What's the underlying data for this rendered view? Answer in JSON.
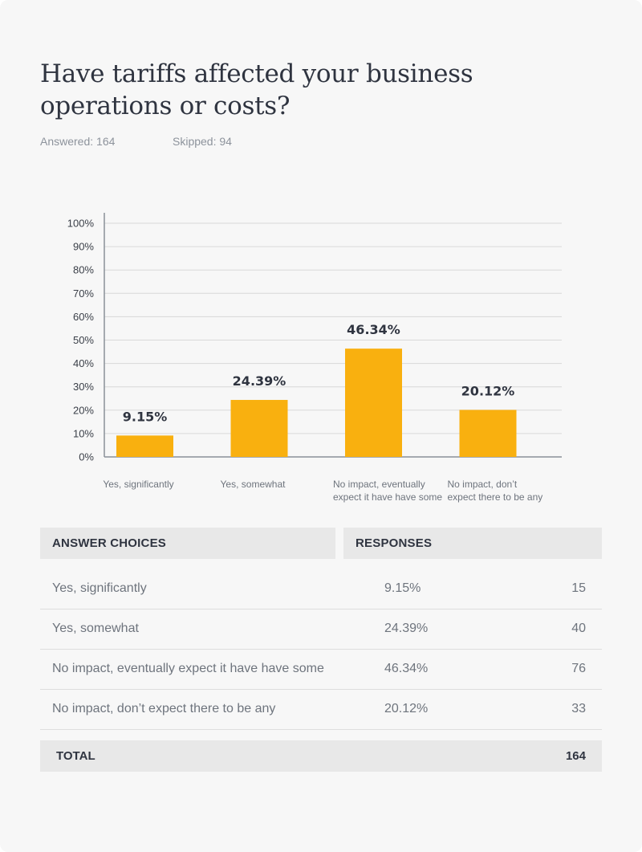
{
  "question": {
    "title": "Have tariffs affected your business operations or costs?",
    "answered": "Answered: 164",
    "skipped": "Skipped: 94"
  },
  "colors": {
    "bar": "#f9b00f",
    "grid": "#d8d8d8",
    "axis": "#8a9099"
  },
  "chart_data": {
    "type": "bar",
    "categories": [
      [
        "Yes, significantly"
      ],
      [
        "Yes, somewhat"
      ],
      [
        "No impact, eventually",
        "expect it have have some"
      ],
      [
        "No impact, don’t",
        "expect there to be any"
      ]
    ],
    "values": [
      9.15,
      24.39,
      46.34,
      20.12
    ],
    "data_labels": [
      "9.15%",
      "24.39%",
      "46.34%",
      "20.12%"
    ],
    "yticks": [
      "0%",
      "10%",
      "20%",
      "30%",
      "40%",
      "50%",
      "60%",
      "70%",
      "80%",
      "90%",
      "100%"
    ],
    "ylim": [
      0,
      100
    ],
    "grid": true
  },
  "table": {
    "header_choices": "ANSWER CHOICES",
    "header_responses": "RESPONSES",
    "rows": [
      {
        "label": "Yes, significantly",
        "percent": "9.15%",
        "count": "15"
      },
      {
        "label": "Yes, somewhat",
        "percent": "24.39%",
        "count": "40"
      },
      {
        "label": "No impact, eventually expect it have have some",
        "percent": "46.34%",
        "count": "76"
      },
      {
        "label": "No impact, don’t expect there to be any",
        "percent": "20.12%",
        "count": "33"
      }
    ],
    "total_label": "TOTAL",
    "total_value": "164"
  }
}
